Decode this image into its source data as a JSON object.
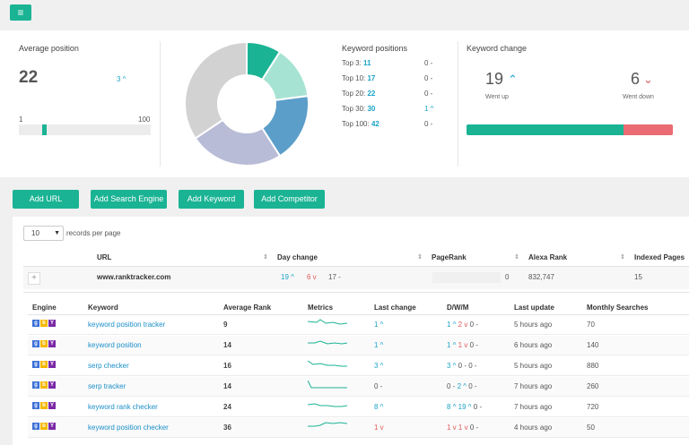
{
  "menu_icon": "hamburger-icon",
  "average_position": {
    "title": "Average position",
    "value": "22",
    "change": "3 ^",
    "range_min": "1",
    "range_max": "100"
  },
  "donut": {
    "segments": [
      {
        "label": "Top 3",
        "value": 11,
        "color": "#1ab394"
      },
      {
        "label": "Top 10",
        "value": 17,
        "color": "#a7e3d3"
      },
      {
        "label": "Top 20",
        "value": 22,
        "color": "#5b9ec9"
      },
      {
        "label": "Top 30",
        "value": 30,
        "color": "#b9bcd6"
      },
      {
        "label": "Top 100",
        "value": 42,
        "color": "#d2d2d2"
      }
    ]
  },
  "keyword_positions": {
    "title": "Keyword positions",
    "rows": [
      {
        "label": "Top 3:",
        "value": "11",
        "change": "0 -"
      },
      {
        "label": "Top 10:",
        "value": "17",
        "change": "0 -"
      },
      {
        "label": "Top 20:",
        "value": "22",
        "change": "0 -"
      },
      {
        "label": "Top 30:",
        "value": "30",
        "change": "1 ^"
      },
      {
        "label": "Top 100:",
        "value": "42",
        "change": "0 -"
      }
    ]
  },
  "keyword_change": {
    "title": "Keyword change",
    "up_value": "19",
    "up_label": "Went up",
    "down_value": "6",
    "down_label": "Went down",
    "up_fraction": 0.76
  },
  "actions": {
    "add_url": "Add URL",
    "add_search_engine": "Add Search Engine",
    "add_keyword": "Add Keyword",
    "add_competitor": "Add Competitor"
  },
  "table": {
    "records_per_page_value": "10",
    "records_per_page_label": "records per page",
    "headers": {
      "url": "URL",
      "day_change": "Day change",
      "pagerank": "PageRank",
      "alexa_rank": "Alexa Rank",
      "indexed_pages": "Indexed Pages"
    },
    "site": {
      "url": "www.ranktracker.com",
      "dc_up": "19 ^",
      "dc_down": "6 v",
      "dc_neutral": "17 -",
      "pagerank": "0",
      "alexa_rank": "832,747",
      "indexed_pages": "15"
    }
  },
  "keywords": {
    "headers": {
      "engine": "Engine",
      "keyword": "Keyword",
      "average_rank": "Average Rank",
      "metrics": "Metrics",
      "last_change": "Last change",
      "dwm": "D/W/M",
      "last_update": "Last update",
      "monthly_searches": "Monthly Searches"
    },
    "rows": [
      {
        "keyword": "keyword position tracker",
        "rank": "9",
        "last_change": "1 ^",
        "lc_dir": "up",
        "d": "1 ^",
        "w": "2 v",
        "m": "0 -",
        "update": "5 hours ago",
        "searches": "70"
      },
      {
        "keyword": "keyword position",
        "rank": "14",
        "last_change": "1 ^",
        "lc_dir": "up",
        "d": "1 ^",
        "w": "1 v",
        "m": "0 -",
        "update": "6 hours ago",
        "searches": "140"
      },
      {
        "keyword": "serp checker",
        "rank": "16",
        "last_change": "3 ^",
        "lc_dir": "up",
        "d": "3 ^",
        "w": "0 -",
        "m": "0 -",
        "update": "5 hours ago",
        "searches": "880"
      },
      {
        "keyword": "serp tracker",
        "rank": "14",
        "last_change": "0 -",
        "lc_dir": "none",
        "d": "0 -",
        "w": "2 ^",
        "m": "0 -",
        "update": "7 hours ago",
        "searches": "260"
      },
      {
        "keyword": "keyword rank checker",
        "rank": "24",
        "last_change": "8 ^",
        "lc_dir": "up",
        "d": "8 ^",
        "w": "19 ^",
        "m": "0 -",
        "update": "7 hours ago",
        "searches": "720"
      },
      {
        "keyword": "keyword position checker",
        "rank": "36",
        "last_change": "1 v",
        "lc_dir": "down",
        "d": "1 v",
        "w": "1 v",
        "m": "0 -",
        "update": "4 hours ago",
        "searches": "50"
      }
    ]
  }
}
